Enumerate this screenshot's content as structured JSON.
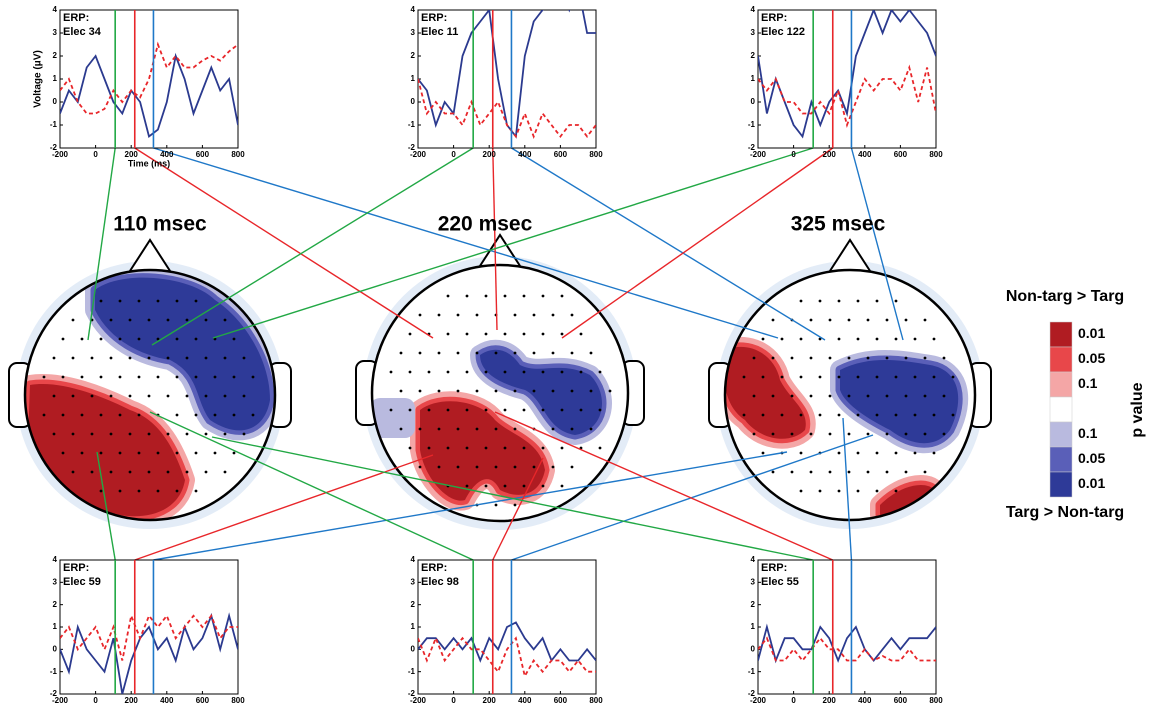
{
  "chart_data": [
    {
      "type": "line",
      "label": "ERP:",
      "electrode": "Elec 34",
      "ylabel": "Voltage (μV)",
      "xlabel": "Time (ms)",
      "x": [
        -200,
        -150,
        -100,
        -50,
        0,
        50,
        100,
        150,
        200,
        250,
        300,
        350,
        400,
        450,
        500,
        550,
        600,
        650,
        700,
        750,
        800
      ],
      "series": [
        {
          "color": "#2b3a8f",
          "style": "solid",
          "values": [
            -0.5,
            0.5,
            0,
            1.5,
            2,
            1,
            0,
            -0.5,
            0.5,
            0,
            -1.5,
            -1.2,
            0,
            2,
            1,
            -0.5,
            0.5,
            1.5,
            0.5,
            1,
            -1
          ]
        },
        {
          "color": "#e8262a",
          "style": "dashed",
          "values": [
            0.5,
            1,
            0,
            -0.5,
            -0.5,
            -0.3,
            0.5,
            0,
            0.5,
            0.2,
            1,
            2.5,
            1.5,
            2,
            1.5,
            1.5,
            1.8,
            2,
            1.8,
            2.2,
            2.5
          ]
        }
      ],
      "vlines": [
        {
          "x": 110,
          "color": "#22a845"
        },
        {
          "x": 220,
          "color": "#e8262a"
        },
        {
          "x": 325,
          "color": "#1f78c8"
        }
      ],
      "xlim": [
        -200,
        800
      ],
      "xticks": [
        -200,
        0,
        200,
        400,
        600,
        800
      ],
      "ylim": [
        -2,
        4
      ],
      "yticks": [
        -2,
        -1,
        0,
        1,
        2,
        3,
        4
      ]
    },
    {
      "type": "line",
      "label": "ERP:",
      "electrode": "Elec 11",
      "x": [
        -200,
        -150,
        -100,
        -50,
        0,
        50,
        100,
        150,
        200,
        250,
        300,
        350,
        400,
        450,
        500,
        550,
        600,
        650,
        700,
        750,
        800
      ],
      "series": [
        {
          "color": "#2b3a8f",
          "style": "solid",
          "values": [
            1,
            0.5,
            -1,
            0,
            -0.5,
            2,
            3,
            3.5,
            4,
            1,
            -1,
            -1.5,
            2,
            3.5,
            4,
            4.5,
            5,
            4,
            5,
            3,
            3
          ]
        },
        {
          "color": "#e8262a",
          "style": "dashed",
          "values": [
            1,
            -0.5,
            0,
            -0.5,
            -0.5,
            -1,
            0,
            -1,
            -0.5,
            0,
            -1,
            -1.5,
            -0.5,
            -1.5,
            -0.5,
            -1,
            -1.5,
            -1,
            -1,
            -1.5,
            -1
          ]
        }
      ],
      "vlines": [
        {
          "x": 110,
          "color": "#22a845"
        },
        {
          "x": 220,
          "color": "#e8262a"
        },
        {
          "x": 325,
          "color": "#1f78c8"
        }
      ],
      "xlim": [
        -200,
        800
      ],
      "xticks": [
        -200,
        0,
        200,
        400,
        600,
        800
      ],
      "ylim": [
        -2,
        4
      ],
      "yticks": [
        -2,
        -1,
        0,
        1,
        2,
        3,
        4
      ]
    },
    {
      "type": "line",
      "label": "ERP:",
      "electrode": "Elec 122",
      "x": [
        -200,
        -150,
        -100,
        -50,
        0,
        50,
        100,
        150,
        200,
        250,
        300,
        350,
        400,
        450,
        500,
        550,
        600,
        650,
        700,
        750,
        800
      ],
      "series": [
        {
          "color": "#2b3a8f",
          "style": "solid",
          "values": [
            2,
            -0.5,
            1,
            0,
            -1,
            -1.5,
            0,
            -1,
            0,
            0.5,
            -0.5,
            2,
            3,
            4,
            3,
            4,
            3.5,
            4,
            3.5,
            3,
            2
          ]
        },
        {
          "color": "#e8262a",
          "style": "dashed",
          "values": [
            1,
            0.5,
            1,
            0,
            0,
            -0.5,
            -0.5,
            0,
            -0.5,
            0.5,
            -1,
            0,
            1,
            0.5,
            1,
            1,
            0.5,
            1.5,
            0,
            1.5,
            -0.5
          ]
        }
      ],
      "vlines": [
        {
          "x": 110,
          "color": "#22a845"
        },
        {
          "x": 220,
          "color": "#e8262a"
        },
        {
          "x": 325,
          "color": "#1f78c8"
        }
      ],
      "xlim": [
        -200,
        800
      ],
      "xticks": [
        -200,
        0,
        200,
        400,
        600,
        800
      ],
      "ylim": [
        -2,
        4
      ],
      "yticks": [
        -2,
        -1,
        0,
        1,
        2,
        3,
        4
      ]
    },
    {
      "type": "line",
      "label": "ERP:",
      "electrode": "Elec 59",
      "x": [
        -200,
        -150,
        -100,
        -50,
        0,
        50,
        100,
        150,
        200,
        250,
        300,
        350,
        400,
        450,
        500,
        550,
        600,
        650,
        700,
        750,
        800
      ],
      "series": [
        {
          "color": "#2b3a8f",
          "style": "solid",
          "values": [
            0,
            -1,
            1,
            0,
            -0.5,
            -1,
            0.5,
            -2,
            -0.5,
            0.5,
            1,
            0,
            0.5,
            -0.5,
            1,
            0,
            0.5,
            1.5,
            0,
            1.5,
            0
          ]
        },
        {
          "color": "#e8262a",
          "style": "dashed",
          "values": [
            0.5,
            1,
            0,
            0.5,
            1,
            0,
            1,
            -0.5,
            1.5,
            0.5,
            1.5,
            1,
            1.5,
            0.5,
            1,
            1.5,
            1,
            1.5,
            0.5,
            1,
            1
          ]
        }
      ],
      "vlines": [
        {
          "x": 110,
          "color": "#22a845"
        },
        {
          "x": 220,
          "color": "#e8262a"
        },
        {
          "x": 325,
          "color": "#1f78c8"
        }
      ],
      "xlim": [
        -200,
        800
      ],
      "xticks": [
        -200,
        0,
        200,
        400,
        600,
        800
      ],
      "ylim": [
        -2,
        4
      ],
      "yticks": [
        -2,
        -1,
        0,
        1,
        2,
        3,
        4
      ]
    },
    {
      "type": "line",
      "label": "ERP:",
      "electrode": "Elec 98",
      "x": [
        -200,
        -150,
        -100,
        -50,
        0,
        50,
        100,
        150,
        200,
        250,
        300,
        350,
        400,
        450,
        500,
        550,
        600,
        650,
        700,
        750,
        800
      ],
      "series": [
        {
          "color": "#2b3a8f",
          "style": "solid",
          "values": [
            0,
            0.5,
            0.5,
            0,
            0.5,
            0,
            0.5,
            -0.5,
            0.5,
            0,
            1,
            1.2,
            0.5,
            0,
            0.5,
            -0.5,
            0,
            -0.5,
            -0.5,
            0,
            -0.5
          ]
        },
        {
          "color": "#e8262a",
          "style": "dashed",
          "values": [
            0.5,
            -0.5,
            0.5,
            -0.5,
            0,
            0.5,
            0,
            0,
            -0.5,
            -1,
            0,
            0.5,
            -1.2,
            -0.5,
            -1,
            -0.5,
            -0.5,
            -1,
            -0.5,
            -1,
            -1
          ]
        }
      ],
      "vlines": [
        {
          "x": 110,
          "color": "#22a845"
        },
        {
          "x": 220,
          "color": "#e8262a"
        },
        {
          "x": 325,
          "color": "#1f78c8"
        }
      ],
      "xlim": [
        -200,
        800
      ],
      "xticks": [
        -200,
        0,
        200,
        400,
        600,
        800
      ],
      "ylim": [
        -2,
        4
      ],
      "yticks": [
        -2,
        -1,
        0,
        1,
        2,
        3,
        4
      ]
    },
    {
      "type": "line",
      "label": "ERP:",
      "electrode": "Elec 55",
      "x": [
        -200,
        -150,
        -100,
        -50,
        0,
        50,
        100,
        150,
        200,
        250,
        300,
        350,
        400,
        450,
        500,
        550,
        600,
        650,
        700,
        750,
        800
      ],
      "series": [
        {
          "color": "#2b3a8f",
          "style": "solid",
          "values": [
            -0.5,
            1,
            -0.5,
            0.5,
            0.5,
            0,
            0,
            1,
            0.5,
            -0.5,
            0.5,
            1,
            0,
            -0.5,
            0,
            0.5,
            0,
            0.5,
            0.5,
            0.5,
            1
          ]
        },
        {
          "color": "#e8262a",
          "style": "dashed",
          "values": [
            0,
            0.5,
            -0.5,
            -0.5,
            0,
            -0.5,
            0,
            0.5,
            0,
            0,
            -0.5,
            -0.5,
            0,
            -0.5,
            -0.3,
            -0.5,
            -0.5,
            0,
            -0.5,
            -0.5,
            -0.5
          ]
        }
      ],
      "vlines": [
        {
          "x": 110,
          "color": "#22a845"
        },
        {
          "x": 220,
          "color": "#e8262a"
        },
        {
          "x": 325,
          "color": "#1f78c8"
        }
      ],
      "xlim": [
        -200,
        800
      ],
      "xticks": [
        -200,
        0,
        200,
        400,
        600,
        800
      ],
      "ylim": [
        -2,
        4
      ],
      "yticks": [
        -2,
        -1,
        0,
        1,
        2,
        3,
        4
      ]
    },
    {
      "type": "topomap",
      "title": "110 msec"
    },
    {
      "type": "topomap",
      "title": "220 msec"
    },
    {
      "type": "topomap",
      "title": "325 msec"
    },
    {
      "type": "colorbar",
      "title": "p value",
      "top_label": "Non-targ > Targ",
      "bottom_label": "Targ > Non-targ",
      "segments": [
        {
          "label": 0.01,
          "color": "#b01c22"
        },
        {
          "label": 0.05,
          "color": "#e8474a"
        },
        {
          "label": 0.1,
          "color": "#f4a6a6"
        },
        {
          "color": "#ffffff"
        },
        {
          "label": 0.1,
          "color": "#b9badf"
        },
        {
          "label": 0.05,
          "color": "#5a5fb8"
        },
        {
          "label": 0.01,
          "color": "#2e3a98"
        }
      ]
    }
  ]
}
